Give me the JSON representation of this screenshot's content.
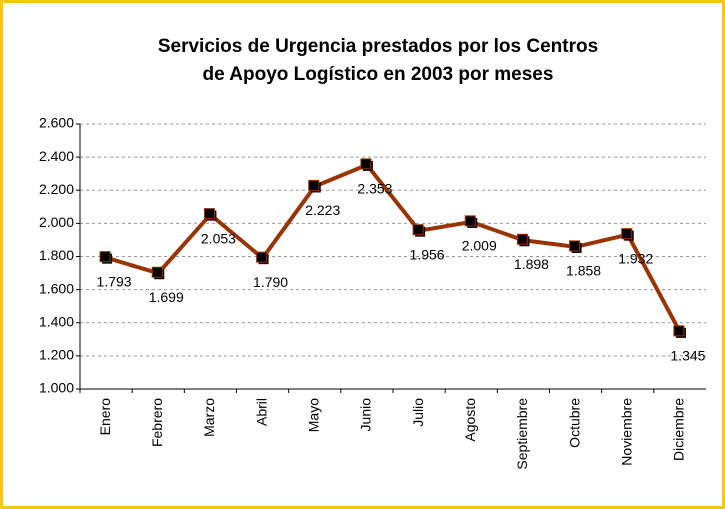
{
  "chart_data": {
    "type": "line",
    "title": [
      "Servicios de Urgencia prestados por los Centros",
      "de Apoyo Logístico en 2003 por meses"
    ],
    "categories": [
      "Enero",
      "Febrero",
      "Marzo",
      "Abril",
      "Mayo",
      "Junio",
      "Julio",
      "Agosto",
      "Septiembre",
      "Octubre",
      "Noviembre",
      "Diciembre"
    ],
    "values": [
      1793,
      1699,
      2053,
      1790,
      2223,
      2353,
      1956,
      2009,
      1898,
      1858,
      1932,
      1345
    ],
    "value_labels": [
      "1.793",
      "1.699",
      "2.053",
      "1.790",
      "2.223",
      "2.353",
      "1.956",
      "2.009",
      "1.898",
      "1.858",
      "1.932",
      "1.345"
    ],
    "color": "#993300",
    "ylim": [
      1000,
      2600
    ],
    "yticks": [
      {
        "value": 1000,
        "label": "1.000"
      },
      {
        "value": 1200,
        "label": "1.200"
      },
      {
        "value": 1400,
        "label": "1.400"
      },
      {
        "value": 1600,
        "label": "1.600"
      },
      {
        "value": 1800,
        "label": "1.800"
      },
      {
        "value": 2000,
        "label": "2.000"
      },
      {
        "value": 2200,
        "label": "2.200"
      },
      {
        "value": 2400,
        "label": "2.400"
      },
      {
        "value": 2600,
        "label": "2.600"
      }
    ],
    "grid": true
  }
}
